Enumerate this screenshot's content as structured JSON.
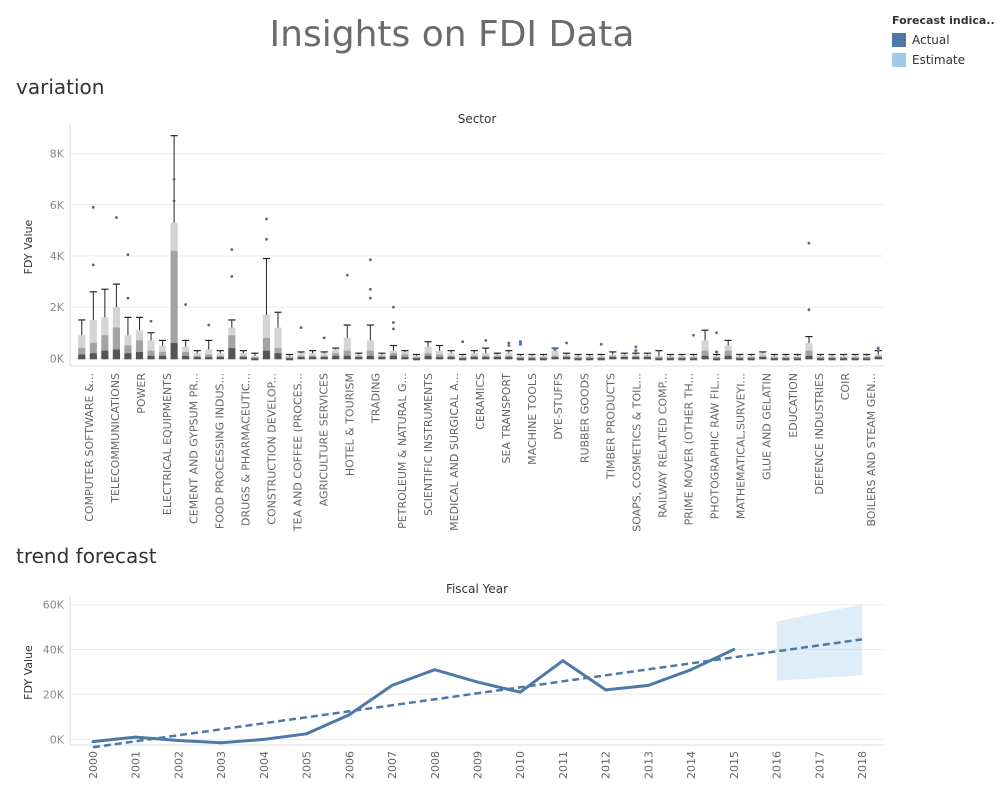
{
  "page": {
    "title": "Insights on FDI Data",
    "section_variation": "variation",
    "section_trend": "trend forecast"
  },
  "legend": {
    "title": "Forecast indica..",
    "items": [
      {
        "label": "Actual",
        "color": "#4e79a7"
      },
      {
        "label": "Estimate",
        "color": "#a0cbe8"
      }
    ]
  },
  "chart_data": [
    {
      "type": "boxplot",
      "title": "Sector",
      "ylabel": "FDY Value",
      "ylim": [
        -300,
        9000
      ],
      "yticks": [
        0,
        2000,
        4000,
        6000,
        8000
      ],
      "ytick_labels": [
        "0K",
        "2K",
        "4K",
        "6K",
        "8K"
      ],
      "grid": true,
      "labeled_categories": [
        "COMPUTER SOFTWARE &...",
        "TELECOMMUNICATIONS",
        "POWER",
        "ELECTRICAL EQUIPMENTS",
        "CEMENT AND GYPSUM PR...",
        "FOOD PROCESSING INDUS...",
        "DRUGS & PHARMACEUTIC...",
        "CONSTRUCTION DEVELOP...",
        "TEA AND COFFEE (PROCES...",
        "AGRICULTURE SERVICES",
        "HOTEL & TOURISM",
        "TRADING",
        "PETROLEUM & NATURAL G...",
        "SCIENTIFIC INSTRUMENTS",
        "MEDICAL AND SURGICAL A...",
        "CERAMICS",
        "SEA TRANSPORT",
        "MACHINE TOOLS",
        "DYE-STUFFS",
        "RUBBER GOODS",
        "TIMBER PRODUCTS",
        "SOAPS, COSMETICS & TOIL...",
        "RAILWAY RELATED COMP...",
        "PRIME MOVER (OTHER TH...",
        "PHOTOGRAPHIC RAW FIL...",
        "MATHEMATICAL,SURVEYI...",
        "GLUE AND GELATIN",
        "EDUCATION",
        "DEFENCE INDUSTRIES",
        "COIR",
        "BOILERS AND STEAM GEN..."
      ],
      "boxes": [
        {
          "q1": 150,
          "median": 400,
          "q3": 900,
          "upper": 1500,
          "lower": 0
        },
        {
          "q1": 200,
          "median": 600,
          "q3": 1500,
          "upper": 2600,
          "lower": 0
        },
        {
          "q1": 300,
          "median": 900,
          "q3": 1600,
          "upper": 2700,
          "lower": 50
        },
        {
          "q1": 350,
          "median": 1200,
          "q3": 2000,
          "upper": 2900,
          "lower": 50
        },
        {
          "q1": 200,
          "median": 500,
          "q3": 900,
          "upper": 1600,
          "lower": 0
        },
        {
          "q1": 250,
          "median": 700,
          "q3": 1100,
          "upper": 1600,
          "lower": 0
        },
        {
          "q1": 100,
          "median": 300,
          "q3": 700,
          "upper": 1000,
          "lower": 0
        },
        {
          "q1": 100,
          "median": 250,
          "q3": 500,
          "upper": 700,
          "lower": 0
        },
        {
          "q1": 600,
          "median": 4200,
          "q3": 5300,
          "upper": 8700,
          "lower": 0
        },
        {
          "q1": 100,
          "median": 250,
          "q3": 450,
          "upper": 700,
          "lower": 0
        },
        {
          "q1": 50,
          "median": 100,
          "q3": 200,
          "upper": 300,
          "lower": 0
        },
        {
          "q1": 50,
          "median": 150,
          "q3": 350,
          "upper": 700,
          "lower": 0
        },
        {
          "q1": 50,
          "median": 100,
          "q3": 200,
          "upper": 300,
          "lower": 0
        },
        {
          "q1": 400,
          "median": 900,
          "q3": 1200,
          "upper": 1500,
          "lower": 0
        },
        {
          "q1": 50,
          "median": 100,
          "q3": 200,
          "upper": 300,
          "lower": 0
        },
        {
          "q1": 0,
          "median": 50,
          "q3": 100,
          "upper": 200,
          "lower": 0
        },
        {
          "q1": 300,
          "median": 800,
          "q3": 1700,
          "upper": 3900,
          "lower": 0
        },
        {
          "q1": 200,
          "median": 400,
          "q3": 1200,
          "upper": 1800,
          "lower": 0
        },
        {
          "q1": 0,
          "median": 50,
          "q3": 100,
          "upper": 150,
          "lower": 0
        },
        {
          "q1": 50,
          "median": 100,
          "q3": 200,
          "upper": 250,
          "lower": 0
        },
        {
          "q1": 50,
          "median": 100,
          "q3": 200,
          "upper": 300,
          "lower": 0
        },
        {
          "q1": 50,
          "median": 100,
          "q3": 200,
          "upper": 250,
          "lower": 0
        },
        {
          "q1": 100,
          "median": 200,
          "q3": 350,
          "upper": 400,
          "lower": 0
        },
        {
          "q1": 100,
          "median": 300,
          "q3": 800,
          "upper": 1300,
          "lower": 0
        },
        {
          "q1": 50,
          "median": 100,
          "q3": 150,
          "upper": 200,
          "lower": 0
        },
        {
          "q1": 100,
          "median": 300,
          "q3": 700,
          "upper": 1300,
          "lower": 0
        },
        {
          "q1": 50,
          "median": 100,
          "q3": 150,
          "upper": 200,
          "lower": 0
        },
        {
          "q1": 100,
          "median": 200,
          "q3": 300,
          "upper": 500,
          "lower": 0
        },
        {
          "q1": 50,
          "median": 150,
          "q3": 250,
          "upper": 300,
          "lower": 0
        },
        {
          "q1": 0,
          "median": 50,
          "q3": 100,
          "upper": 150,
          "lower": 0
        },
        {
          "q1": 100,
          "median": 200,
          "q3": 450,
          "upper": 650,
          "lower": 0
        },
        {
          "q1": 50,
          "median": 150,
          "q3": 300,
          "upper": 500,
          "lower": 0
        },
        {
          "q1": 50,
          "median": 100,
          "q3": 200,
          "upper": 300,
          "lower": 0
        },
        {
          "q1": 0,
          "median": 50,
          "q3": 100,
          "upper": 150,
          "lower": 0
        },
        {
          "q1": 50,
          "median": 100,
          "q3": 200,
          "upper": 300,
          "lower": 0
        },
        {
          "q1": 50,
          "median": 100,
          "q3": 200,
          "upper": 400,
          "lower": 0
        },
        {
          "q1": 50,
          "median": 100,
          "q3": 150,
          "upper": 200,
          "lower": 0
        },
        {
          "q1": 50,
          "median": 100,
          "q3": 200,
          "upper": 300,
          "lower": 0
        },
        {
          "q1": 0,
          "median": 50,
          "q3": 100,
          "upper": 150,
          "lower": 0
        },
        {
          "q1": 0,
          "median": 50,
          "q3": 100,
          "upper": 150,
          "lower": 0
        },
        {
          "q1": 0,
          "median": 50,
          "q3": 100,
          "upper": 150,
          "lower": 0
        },
        {
          "q1": 50,
          "median": 100,
          "q3": 300,
          "upper": 400,
          "lower": 0
        },
        {
          "q1": 50,
          "median": 100,
          "q3": 150,
          "upper": 200,
          "lower": 0
        },
        {
          "q1": 0,
          "median": 50,
          "q3": 100,
          "upper": 150,
          "lower": 0
        },
        {
          "q1": 0,
          "median": 50,
          "q3": 100,
          "upper": 150,
          "lower": 0
        },
        {
          "q1": 0,
          "median": 50,
          "q3": 100,
          "upper": 150,
          "lower": 0
        },
        {
          "q1": 50,
          "median": 100,
          "q3": 150,
          "upper": 250,
          "lower": 0
        },
        {
          "q1": 50,
          "median": 100,
          "q3": 150,
          "upper": 200,
          "lower": 0
        },
        {
          "q1": 50,
          "median": 100,
          "q3": 150,
          "upper": 200,
          "lower": 0
        },
        {
          "q1": 50,
          "median": 100,
          "q3": 150,
          "upper": 200,
          "lower": 0
        },
        {
          "q1": 0,
          "median": 50,
          "q3": 100,
          "upper": 300,
          "lower": 0
        },
        {
          "q1": 0,
          "median": 50,
          "q3": 100,
          "upper": 150,
          "lower": 0
        },
        {
          "q1": 0,
          "median": 50,
          "q3": 100,
          "upper": 150,
          "lower": 0
        },
        {
          "q1": 0,
          "median": 50,
          "q3": 100,
          "upper": 150,
          "lower": 0
        },
        {
          "q1": 100,
          "median": 300,
          "q3": 700,
          "upper": 1100,
          "lower": 0
        },
        {
          "q1": 0,
          "median": 50,
          "q3": 100,
          "upper": 150,
          "lower": 0
        },
        {
          "q1": 100,
          "median": 300,
          "q3": 500,
          "upper": 700,
          "lower": 0
        },
        {
          "q1": 0,
          "median": 50,
          "q3": 100,
          "upper": 150,
          "lower": 0
        },
        {
          "q1": 0,
          "median": 50,
          "q3": 100,
          "upper": 150,
          "lower": 0
        },
        {
          "q1": 50,
          "median": 100,
          "q3": 200,
          "upper": 250,
          "lower": 0
        },
        {
          "q1": 0,
          "median": 50,
          "q3": 100,
          "upper": 150,
          "lower": 0
        },
        {
          "q1": 0,
          "median": 50,
          "q3": 100,
          "upper": 150,
          "lower": 0
        },
        {
          "q1": 0,
          "median": 50,
          "q3": 100,
          "upper": 150,
          "lower": 0
        },
        {
          "q1": 100,
          "median": 300,
          "q3": 600,
          "upper": 850,
          "lower": 0
        },
        {
          "q1": 0,
          "median": 50,
          "q3": 100,
          "upper": 150,
          "lower": 0
        },
        {
          "q1": 0,
          "median": 50,
          "q3": 100,
          "upper": 150,
          "lower": 0
        },
        {
          "q1": 0,
          "median": 50,
          "q3": 100,
          "upper": 150,
          "lower": 0
        },
        {
          "q1": 0,
          "median": 50,
          "q3": 100,
          "upper": 150,
          "lower": 0
        },
        {
          "q1": 0,
          "median": 50,
          "q3": 100,
          "upper": 150,
          "lower": 0
        },
        {
          "q1": 50,
          "median": 100,
          "q3": 150,
          "upper": 300,
          "lower": 0
        }
      ],
      "outliers": [
        {
          "i": 1,
          "v": 5900
        },
        {
          "i": 1,
          "v": 3650
        },
        {
          "i": 3,
          "v": 5500
        },
        {
          "i": 4,
          "v": 4050
        },
        {
          "i": 4,
          "v": 2350
        },
        {
          "i": 6,
          "v": 1450
        },
        {
          "i": 8,
          "v": 7000
        },
        {
          "i": 8,
          "v": 6150
        },
        {
          "i": 9,
          "v": 2100
        },
        {
          "i": 11,
          "v": 1300
        },
        {
          "i": 13,
          "v": 4250
        },
        {
          "i": 13,
          "v": 3200
        },
        {
          "i": 16,
          "v": 5450
        },
        {
          "i": 16,
          "v": 4650
        },
        {
          "i": 19,
          "v": 1200
        },
        {
          "i": 21,
          "v": 800
        },
        {
          "i": 23,
          "v": 3250
        },
        {
          "i": 25,
          "v": 3850
        },
        {
          "i": 25,
          "v": 2700
        },
        {
          "i": 25,
          "v": 2350
        },
        {
          "i": 27,
          "v": 2000
        },
        {
          "i": 27,
          "v": 1400
        },
        {
          "i": 27,
          "v": 1150
        },
        {
          "i": 33,
          "v": 650
        },
        {
          "i": 35,
          "v": 700
        },
        {
          "i": 37,
          "v": 600
        },
        {
          "i": 37,
          "v": 500
        },
        {
          "i": 42,
          "v": 600
        },
        {
          "i": 45,
          "v": 550
        },
        {
          "i": 48,
          "v": 450
        },
        {
          "i": 53,
          "v": 900
        },
        {
          "i": 55,
          "v": 1000
        },
        {
          "i": 63,
          "v": 4500
        },
        {
          "i": 63,
          "v": 1900
        },
        {
          "i": 69,
          "v": 400
        }
      ],
      "blue_marks": [
        {
          "i": 38,
          "v": 550
        },
        {
          "i": 38,
          "v": 650
        },
        {
          "i": 41,
          "v": 350
        },
        {
          "i": 48,
          "v": 300
        },
        {
          "i": 55,
          "v": 250
        },
        {
          "i": 69,
          "v": 300
        }
      ]
    },
    {
      "type": "line",
      "title": "Fiscal Year",
      "ylabel": "FDY Value",
      "x_ticks": [
        "2000",
        "2001",
        "2002",
        "2003",
        "2004",
        "2005",
        "2006",
        "2007",
        "2008",
        "2009",
        "2010",
        "2011",
        "2012",
        "2013",
        "2014",
        "2015",
        "2016",
        "2017",
        "2018"
      ],
      "ylim": [
        -2500,
        62000
      ],
      "yticks": [
        0,
        20000,
        40000,
        60000
      ],
      "ytick_labels": [
        "0K",
        "20K",
        "40K",
        "60K"
      ],
      "grid": true,
      "series": [
        {
          "name": "Actual",
          "x": [
            2000,
            2001,
            2002,
            2003,
            2004,
            2005,
            2006,
            2007,
            2008,
            2009,
            2010,
            2011,
            2012,
            2013,
            2014,
            2015
          ],
          "values": [
            -1000,
            1000,
            -500,
            -1500,
            0,
            2500,
            11000,
            24000,
            31000,
            25500,
            21000,
            35000,
            22000,
            24000,
            31000,
            40000
          ]
        },
        {
          "x": [
            2000,
            2018
          ],
          "values": [
            -3500,
            44500
          ]
        }
      ],
      "forecast_band": {
        "x": [
          2016,
          2018
        ],
        "upper": [
          52500,
          60000
        ],
        "lower": [
          26000,
          28500
        ]
      }
    }
  ]
}
